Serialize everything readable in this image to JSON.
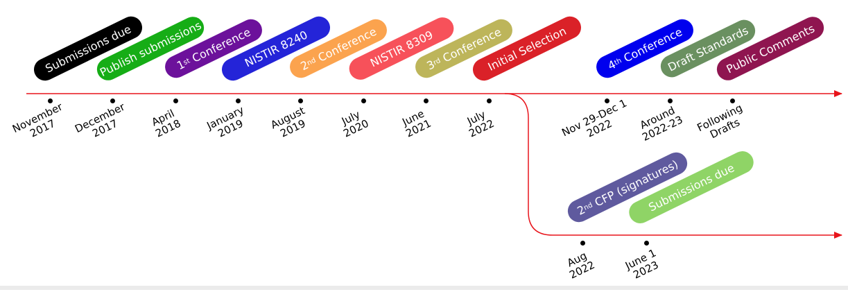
{
  "colors": {
    "timeline": "#e8141b",
    "marker": "#000000"
  },
  "events_top": [
    {
      "label": "Submissions due",
      "sup": "",
      "suffix": "",
      "color": "#000000"
    },
    {
      "label": "Publish submissions",
      "sup": "",
      "suffix": "",
      "color": "#16ad16"
    },
    {
      "label": "1",
      "sup": "st",
      "suffix": " Conference",
      "color": "#6c119b"
    },
    {
      "label": "NISTIR 8240",
      "sup": "",
      "suffix": "",
      "color": "#2424d8"
    },
    {
      "label": "2",
      "sup": "nd",
      "suffix": " Conference",
      "color": "#fba34e"
    },
    {
      "label": "NISTIR 8309",
      "sup": "",
      "suffix": "",
      "color": "#f7515a"
    },
    {
      "label": "3",
      "sup": "rd",
      "suffix": " Conference",
      "color": "#bdb55a"
    },
    {
      "label": "Initial Selection",
      "sup": "",
      "suffix": "",
      "color": "#da2128"
    },
    {
      "label": "4",
      "sup": "th",
      "suffix": " Conference",
      "color": "#0000ee"
    },
    {
      "label": "Draft Standards",
      "sup": "",
      "suffix": "",
      "color": "#6a9060"
    },
    {
      "label": "Public Comments",
      "sup": "",
      "suffix": "",
      "color": "#8f1550"
    }
  ],
  "dates_top": [
    [
      "November",
      "2017"
    ],
    [
      "December",
      "2017"
    ],
    [
      "April",
      "2018"
    ],
    [
      "January",
      "2019"
    ],
    [
      "August",
      "2019"
    ],
    [
      "July",
      "2020"
    ],
    [
      "June",
      "2021"
    ],
    [
      "July",
      "2022"
    ],
    [
      "Nov 29-Dec 1",
      "2022"
    ],
    [
      "Around",
      "2022-23"
    ],
    [
      "Following",
      "Drafts"
    ]
  ],
  "events_bottom": [
    {
      "label": "2",
      "sup": "nd",
      "suffix": " CFP (signatures)",
      "color": "#5f5a9e"
    },
    {
      "label": "Submissions due",
      "sup": "",
      "suffix": "",
      "color": "#8fd466"
    }
  ],
  "dates_bottom": [
    [
      "Aug",
      "2022"
    ],
    [
      "June 1",
      "2023"
    ]
  ]
}
